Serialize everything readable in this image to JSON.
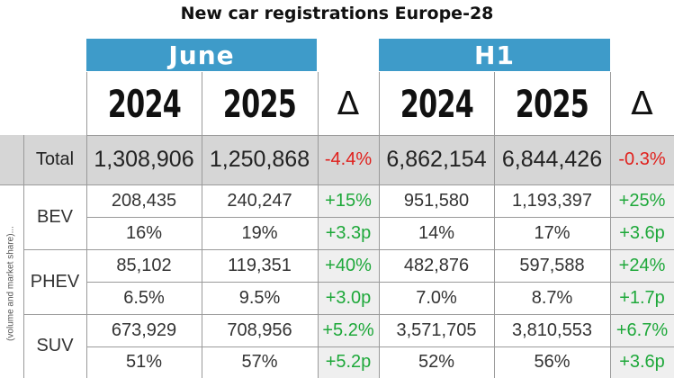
{
  "title": "New car registrations Europe-28",
  "periods": [
    "June",
    "H1"
  ],
  "years": [
    "2024",
    "2025"
  ],
  "delta_symbol": "Δ",
  "side_note": "(volume and market share)...",
  "total": {
    "label": "Total",
    "june_2024": "1,308,906",
    "june_2025": "1,250,868",
    "june_delta": "-4.4%",
    "h1_2024": "6,862,154",
    "h1_2025": "6,844,426",
    "h1_delta": "-0.3%"
  },
  "rows": [
    {
      "label": "BEV",
      "volume": {
        "june_2024": "208,435",
        "june_2025": "240,247",
        "june_delta": "+15%",
        "h1_2024": "951,580",
        "h1_2025": "1,193,397",
        "h1_delta": "+25%"
      },
      "share": {
        "june_2024": "16%",
        "june_2025": "19%",
        "june_delta": "+3.3p",
        "h1_2024": "14%",
        "h1_2025": "17%",
        "h1_delta": "+3.6p"
      }
    },
    {
      "label": "PHEV",
      "volume": {
        "june_2024": "85,102",
        "june_2025": "119,351",
        "june_delta": "+40%",
        "h1_2024": "482,876",
        "h1_2025": "597,588",
        "h1_delta": "+24%"
      },
      "share": {
        "june_2024": "6.5%",
        "june_2025": "9.5%",
        "june_delta": "+3.0p",
        "h1_2024": "7.0%",
        "h1_2025": "8.7%",
        "h1_delta": "+1.7p"
      }
    },
    {
      "label": "SUV",
      "volume": {
        "june_2024": "673,929",
        "june_2025": "708,956",
        "june_delta": "+5.2%",
        "h1_2024": "3,571,705",
        "h1_2025": "3,810,553",
        "h1_delta": "+6.7%"
      },
      "share": {
        "june_2024": "51%",
        "june_2025": "57%",
        "june_delta": "+5.2p",
        "h1_2024": "52%",
        "h1_2025": "56%",
        "h1_delta": "+3.6p"
      }
    }
  ],
  "colors": {
    "header_blue": "#3e9bc9",
    "negative": "#e0201c",
    "positive": "#1ea83a",
    "total_row_bg": "#d6d6d6"
  }
}
